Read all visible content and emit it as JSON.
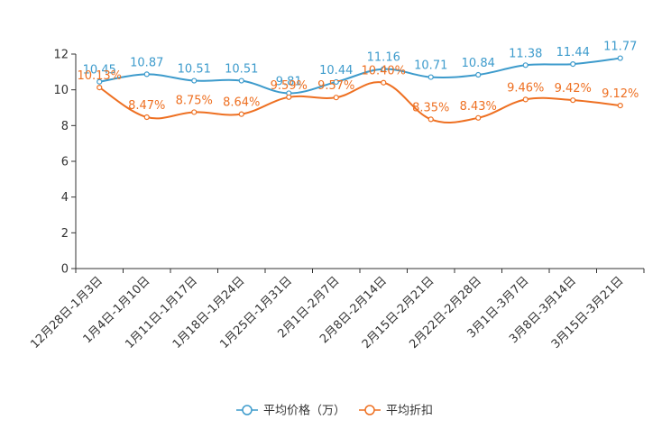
{
  "chart_data": {
    "type": "line",
    "title": "",
    "xlabel": "",
    "ylabel": "",
    "ylim": [
      0,
      12
    ],
    "yticks": [
      0,
      2,
      4,
      6,
      8,
      10,
      12
    ],
    "ytick_labels": [
      "0",
      "2",
      "4",
      "6",
      "8",
      "10",
      "12"
    ],
    "categories": [
      "12月28日-1月3日",
      "1月4日-1月10日",
      "1月11日-1月17日",
      "1月18日-1月24日",
      "1月25日-1月31日",
      "2月1日-2月7日",
      "2月8日-2月14日",
      "2月15日-2月21日",
      "2月22日-2月28日",
      "3月1日-3月7日",
      "3月8日-3月14日",
      "3月15日-3月21日"
    ],
    "series": [
      {
        "name": "平均价格（万）",
        "color": "#3d9bcc",
        "values": [
          10.45,
          10.87,
          10.51,
          10.51,
          9.81,
          10.44,
          11.16,
          10.71,
          10.84,
          11.38,
          11.44,
          11.77
        ],
        "labels": [
          "10.45",
          "10.87",
          "10.51",
          "10.51",
          "9.81",
          "10.44",
          "11.16",
          "10.71",
          "10.84",
          "11.38",
          "11.44",
          "11.77"
        ]
      },
      {
        "name": "平均折扣",
        "color": "#ee7022",
        "values": [
          10.13,
          8.47,
          8.75,
          8.64,
          9.59,
          9.57,
          10.4,
          8.35,
          8.43,
          9.46,
          9.42,
          9.12
        ],
        "labels": [
          "10.13%",
          "8.47%",
          "8.75%",
          "8.64%",
          "9.59%",
          "9.57%",
          "10.40%",
          "8.35%",
          "8.43%",
          "9.46%",
          "9.42%",
          "9.12%"
        ]
      }
    ],
    "grid": false,
    "legend_position": "bottom-center"
  }
}
